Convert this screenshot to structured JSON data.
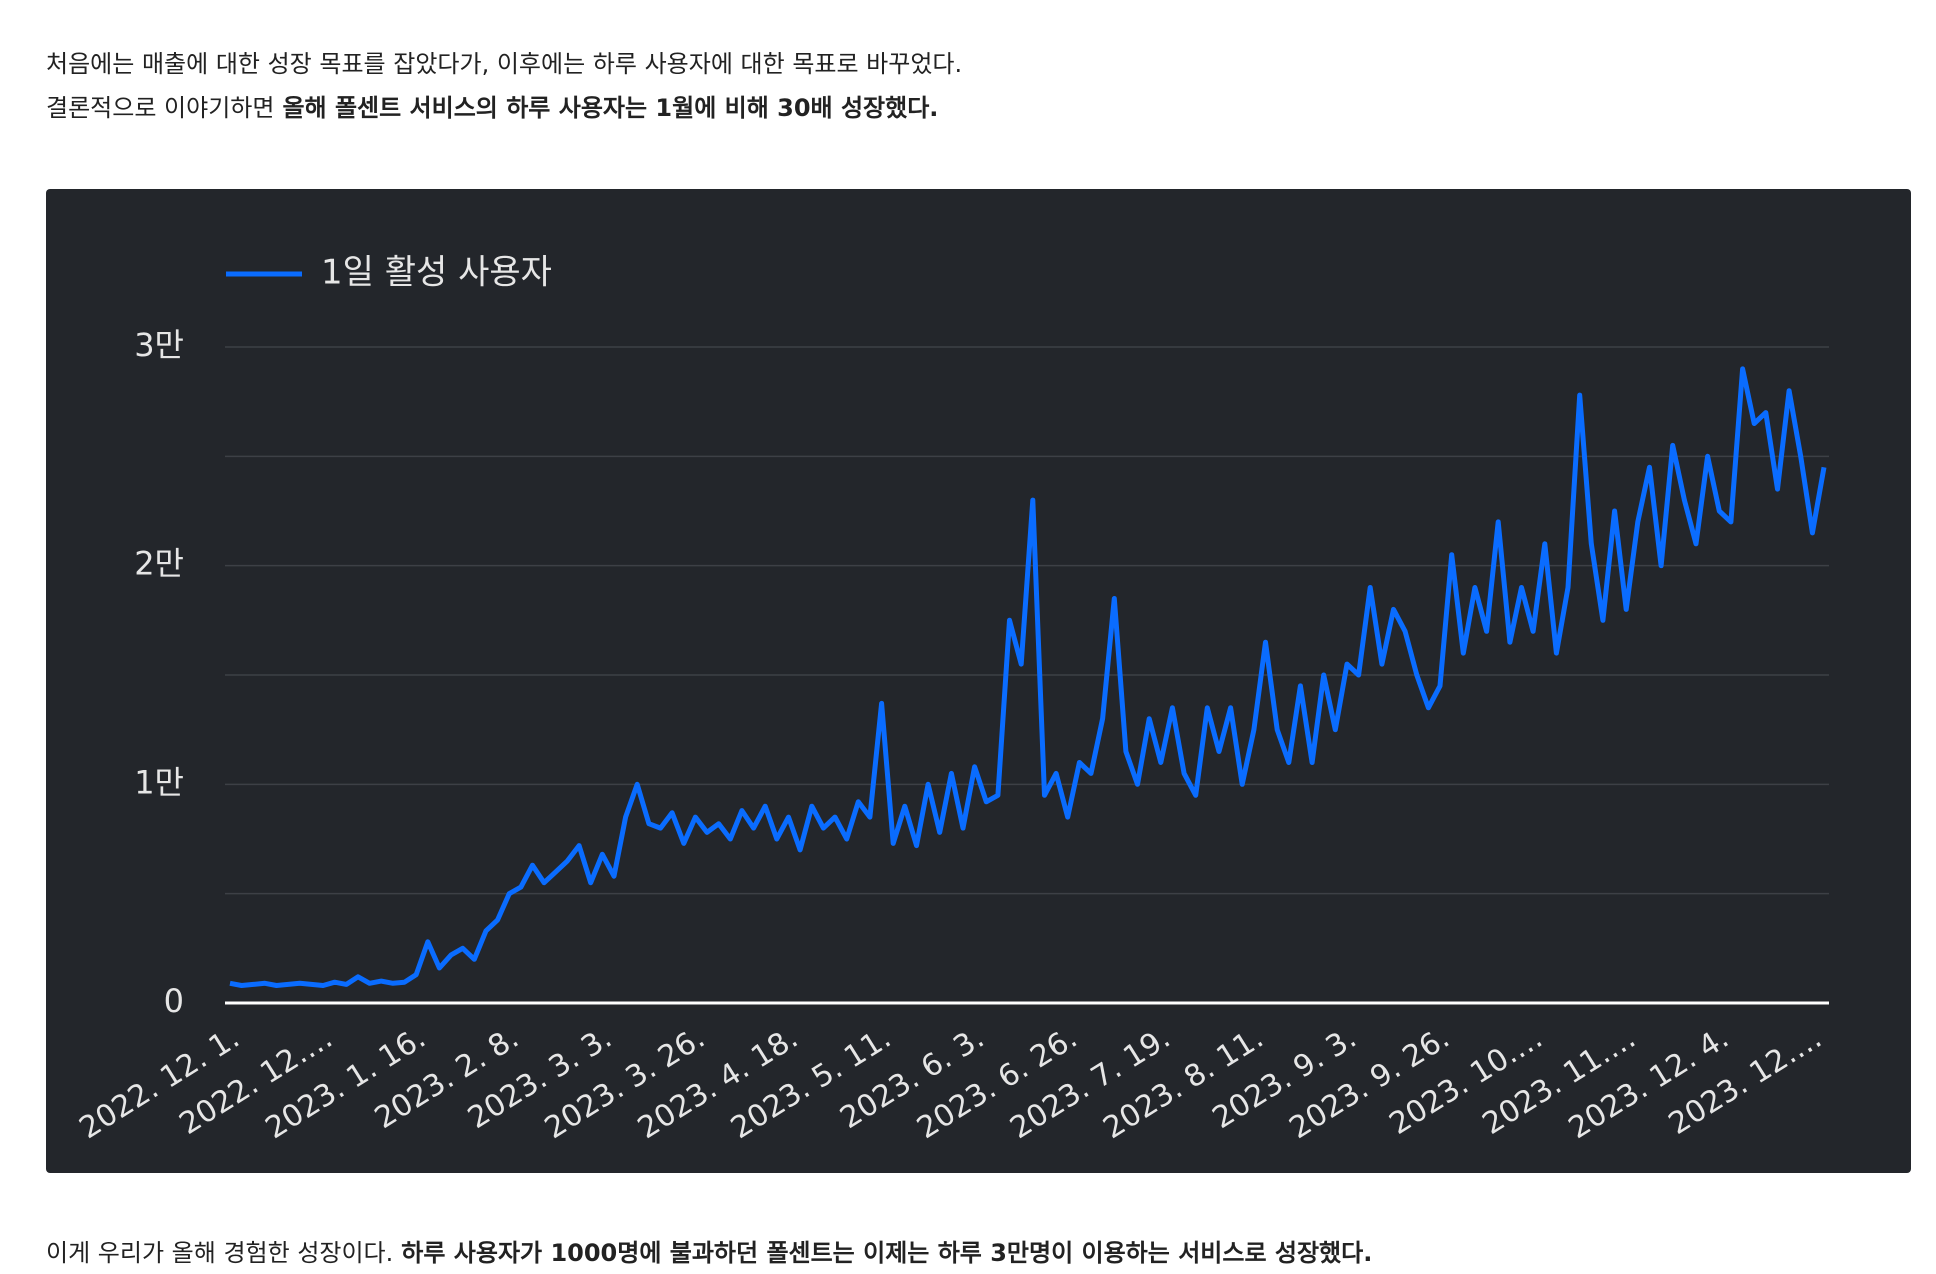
{
  "intro_line1": "처음에는 매출에 대한 성장 목표를 잡았다가, 이후에는 하루 사용자에 대한 목표로 바꾸었다.",
  "intro_line2_plain": "결론적으로 이야기하면",
  "intro_line2_bold": "올해 폴센트 서비스의 하루 사용자는 1월에 비해 30배 성장했다.",
  "outro_plain": "이게 우리가 올해 경험한 성장이다.",
  "outro_bold": "하루 사용자가 1000명에 불과하던 폴센트는 이제는 하루 3만명이 이용하는 서비스로 성장했다.",
  "chart_data": {
    "type": "line",
    "categories": [
      "2022. 12. 1.",
      null,
      null,
      null,
      null,
      null,
      null,
      null,
      "2022. 12.…",
      null,
      null,
      null,
      null,
      null,
      null,
      null,
      "2023. 1. 16.",
      null,
      null,
      null,
      null,
      null,
      null,
      null,
      "2023. 2. 8.",
      null,
      null,
      null,
      null,
      null,
      null,
      null,
      "2023. 3. 3.",
      null,
      null,
      null,
      null,
      null,
      null,
      null,
      "2023. 3. 26.",
      null,
      null,
      null,
      null,
      null,
      null,
      null,
      "2023. 4. 18.",
      null,
      null,
      null,
      null,
      null,
      null,
      null,
      "2023. 5. 11.",
      null,
      null,
      null,
      null,
      null,
      null,
      null,
      "2023. 6. 3.",
      null,
      null,
      null,
      null,
      null,
      null,
      null,
      "2023. 6. 26.",
      null,
      null,
      null,
      null,
      null,
      null,
      null,
      "2023. 7. 19.",
      null,
      null,
      null,
      null,
      null,
      null,
      null,
      "2023. 8. 11.",
      null,
      null,
      null,
      null,
      null,
      null,
      null,
      "2023. 9. 3.",
      null,
      null,
      null,
      null,
      null,
      null,
      null,
      "2023. 9. 26.",
      null,
      null,
      null,
      null,
      null,
      null,
      null,
      "2023. 10.…",
      null,
      null,
      null,
      null,
      null,
      null,
      null,
      "2023. 11.…",
      null,
      null,
      null,
      null,
      null,
      null,
      null,
      "2023. 12. 4.",
      null,
      null,
      null,
      null,
      null,
      null,
      null,
      "2023. 12.…",
      null
    ],
    "series": [
      {
        "name": "1일 활성 사용자",
        "color": "#0a6cff",
        "values": [
          900,
          800,
          850,
          900,
          800,
          850,
          900,
          850,
          800,
          950,
          850,
          1200,
          900,
          1000,
          900,
          950,
          1300,
          2800,
          1600,
          2200,
          2500,
          2000,
          3300,
          3800,
          5000,
          5300,
          6300,
          5500,
          6000,
          6500,
          7200,
          5500,
          6800,
          5800,
          8500,
          10000,
          8200,
          8000,
          8700,
          7300,
          8500,
          7800,
          8200,
          7500,
          8800,
          8000,
          9000,
          7500,
          8500,
          7000,
          9000,
          8000,
          8500,
          7500,
          9200,
          8500,
          13700,
          7300,
          9000,
          7200,
          10000,
          7800,
          10500,
          8000,
          10800,
          9200,
          9500,
          17500,
          15500,
          23000,
          9500,
          10500,
          8500,
          11000,
          10500,
          13000,
          18500,
          11500,
          10000,
          13000,
          11000,
          13500,
          10500,
          9500,
          13500,
          11500,
          13500,
          10000,
          12500,
          16500,
          12500,
          11000,
          14500,
          11000,
          15000,
          12500,
          15500,
          15000,
          19000,
          15500,
          18000,
          17000,
          15000,
          13500,
          14500,
          20500,
          16000,
          19000,
          17000,
          22000,
          16500,
          19000,
          17000,
          21000,
          16000,
          19000,
          27800,
          21000,
          17500,
          22500,
          18000,
          22000,
          24500,
          20000,
          25500,
          23000,
          21000,
          25000,
          22500,
          22000,
          29000,
          26500,
          27000,
          23500,
          28000,
          25000,
          21500,
          24500
        ]
      }
    ],
    "ylim": [
      0,
      30000
    ],
    "yticks": [
      0,
      {
        "value": 10000,
        "label": "1만"
      },
      {
        "value": 20000,
        "label": "2만"
      },
      {
        "value": 30000,
        "label": "3만"
      }
    ],
    "minor_yticks": [
      5000,
      15000,
      25000
    ],
    "grid": true,
    "legend": "top-left"
  }
}
